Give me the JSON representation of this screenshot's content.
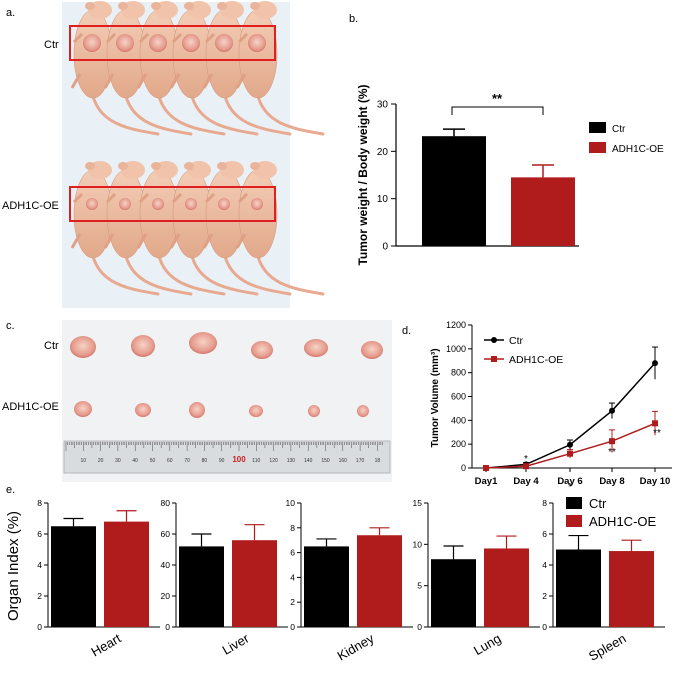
{
  "panels": {
    "a": {
      "letter": "a.",
      "row_labels": [
        "Ctr",
        "ADH1C-OE"
      ]
    },
    "c": {
      "letter": "c.",
      "row_labels": [
        "Ctr",
        "ADH1C-OE"
      ],
      "ruler_ticks": [
        "10",
        "20",
        "30",
        "40",
        "50",
        "60",
        "70",
        "80",
        "90",
        "100",
        "110",
        "120",
        "130",
        "140",
        "150",
        "160",
        "170",
        "18"
      ]
    }
  },
  "colors": {
    "ctr": "#000000",
    "oe": "#b01c1c",
    "box": "#e02020"
  },
  "chart_data": [
    {
      "panel": "b.",
      "type": "bar",
      "categories": [
        "Ctr",
        "ADH1C-OE"
      ],
      "values": [
        23.2,
        14.5
      ],
      "errors": [
        1.5,
        2.6
      ],
      "ylabel": "Tumor weight / Body weight (%)",
      "ylim": [
        0,
        30
      ],
      "yticks": [
        "0",
        "10",
        "20",
        "30"
      ],
      "legend": [
        "Ctr",
        "ADH1C-OE"
      ],
      "legend_placement": "right",
      "significance": "**"
    },
    {
      "panel": "d.",
      "type": "line",
      "x": [
        "Day1",
        "Day 4",
        "Day 6",
        "Day 8",
        "Day 10"
      ],
      "series": [
        {
          "name": "Ctr",
          "values": [
            0,
            30,
            195,
            480,
            880
          ],
          "errors": [
            10,
            15,
            40,
            65,
            135
          ]
        },
        {
          "name": "ADH1C-OE",
          "values": [
            0,
            15,
            120,
            225,
            375
          ],
          "errors": [
            8,
            10,
            35,
            95,
            100
          ]
        }
      ],
      "ylabel": "Tumor Volume (mm³)",
      "ylim": [
        0,
        1200
      ],
      "yticks": [
        "0",
        "200",
        "400",
        "600",
        "800",
        "1000",
        "1200"
      ],
      "annotations": [
        {
          "x": "Day 4",
          "text": "*"
        },
        {
          "x": "Day 6",
          "text": "*"
        },
        {
          "x": "Day 8",
          "text": "**"
        },
        {
          "x": "Day 10",
          "text": "**"
        }
      ],
      "legend_placement": "top-left"
    },
    {
      "panel": "e.",
      "type": "bar",
      "ylabel": "Organ Index (%)",
      "legend": [
        "Ctr",
        "ADH1C-OE"
      ],
      "legend_placement": "top-right",
      "subplots": [
        {
          "category": "Heart",
          "ylim": [
            0,
            8
          ],
          "yticks": [
            "0",
            "2",
            "4",
            "6",
            "8"
          ],
          "values": [
            6.5,
            6.8
          ],
          "errors": [
            0.5,
            0.7
          ]
        },
        {
          "category": "Liver",
          "ylim": [
            0,
            80
          ],
          "yticks": [
            "0",
            "20",
            "40",
            "60",
            "80"
          ],
          "values": [
            52,
            56
          ],
          "errors": [
            8,
            10
          ]
        },
        {
          "category": "Kidney",
          "ylim": [
            0,
            10
          ],
          "yticks": [
            "0",
            "2",
            "4",
            "6",
            "8",
            "10"
          ],
          "values": [
            6.5,
            7.4
          ],
          "errors": [
            0.6,
            0.6
          ]
        },
        {
          "category": "Lung",
          "ylim": [
            0,
            15
          ],
          "yticks": [
            "0",
            "5",
            "10",
            "15"
          ],
          "values": [
            8.2,
            9.5
          ],
          "errors": [
            1.6,
            1.5
          ]
        },
        {
          "category": "Spleen",
          "ylim": [
            0,
            8
          ],
          "yticks": [
            "0",
            "2",
            "4",
            "6",
            "8"
          ],
          "values": [
            5.0,
            4.9
          ],
          "errors": [
            0.9,
            0.7
          ]
        }
      ]
    }
  ]
}
